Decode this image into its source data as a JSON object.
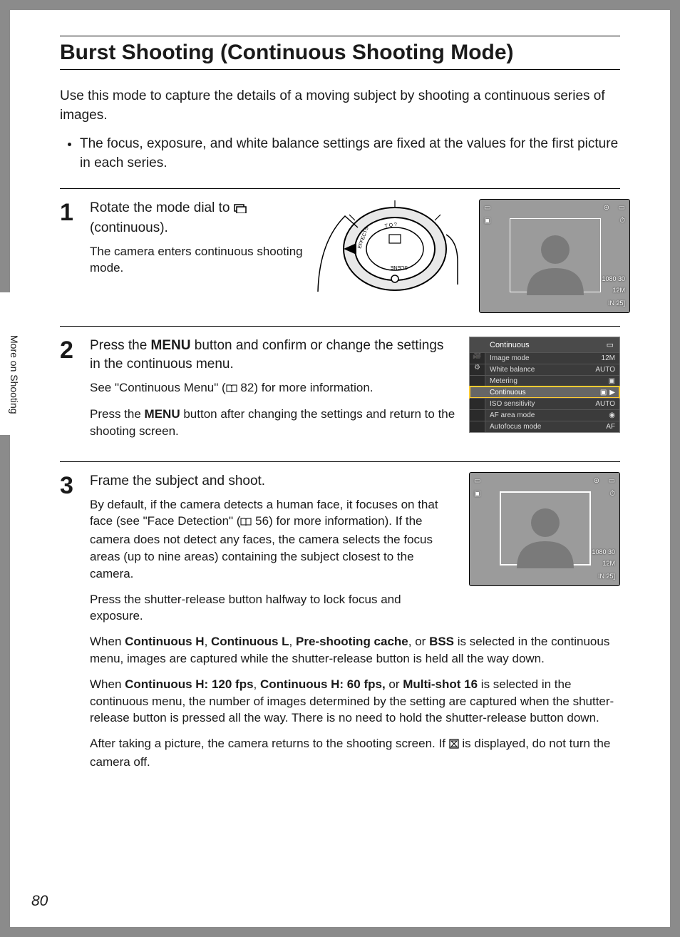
{
  "page": {
    "title": "Burst Shooting (Continuous Shooting Mode)",
    "intro": "Use this mode to capture the details of a moving subject by shooting a continuous series of images.",
    "bullet": "The focus, exposure, and white balance settings are fixed at the values for the first picture in each series.",
    "sidebar": "More on Shooting",
    "number": "80"
  },
  "step1": {
    "num": "1",
    "head_a": "Rotate the mode dial to ",
    "head_b": " (continuous).",
    "desc": "The camera enters continuous shooting mode."
  },
  "step2": {
    "num": "2",
    "head_a": "Press the ",
    "head_menu": "MENU",
    "head_b": " button and confirm or change the settings in the continuous menu.",
    "desc1_a": "See \"Continuous Menu\" (",
    "desc1_ref": "82",
    "desc1_b": ") for more information.",
    "desc2_a": "Press the ",
    "desc2_menu": "MENU",
    "desc2_b": " button after changing the settings and return to the shooting screen."
  },
  "step3": {
    "num": "3",
    "head": "Frame the subject and shoot.",
    "p1_a": "By default, if the camera detects a human face, it focuses on that face (see \"Face Detection\" (",
    "p1_ref": "56",
    "p1_b": ") for more information). If the camera does not detect any faces, the camera selects the focus areas (up to nine areas) containing the subject closest to the camera.",
    "p2": "Press the shutter-release button halfway to lock focus and exposure.",
    "p3_a": "When ",
    "p3_b1": "Continuous H",
    "p3_c": ", ",
    "p3_b2": "Continuous L",
    "p3_d": ", ",
    "p3_b3": "Pre-shooting cache",
    "p3_e": ", or ",
    "p3_b4": "BSS",
    "p3_f": " is selected in the continuous menu, images are captured while the shutter-release button is held all the way down.",
    "p4_a": "When ",
    "p4_b1": "Continuous H: 120 fps",
    "p4_c": ", ",
    "p4_b2": "Continuous H: 60 fps,",
    "p4_d": " or ",
    "p4_b3": "Multi-shot 16",
    "p4_e": " is selected in the continuous menu, the number of images determined by the setting are captured when the shutter-release button is pressed all the way. There is no need to hold the shutter-release button down.",
    "p5_a": "After taking a picture, the camera returns to the shooting screen. If ",
    "p5_b": " is displayed, do not turn the camera off."
  },
  "menu": {
    "title": "Continuous",
    "rows": [
      {
        "label": "Image mode",
        "val": "12M"
      },
      {
        "label": "White balance",
        "val": "AUTO"
      },
      {
        "label": "Metering",
        "val": "▣"
      },
      {
        "label": "Continuous",
        "val": "▣",
        "hl": true
      },
      {
        "label": "ISO sensitivity",
        "val": "AUTO"
      },
      {
        "label": "AF area mode",
        "val": "◉"
      },
      {
        "label": "Autofocus mode",
        "val": "AF"
      }
    ]
  },
  "lcd": {
    "top_icons_left": "▭",
    "top_icons_right1": "⊛",
    "top_icons_right2": "▭",
    "left_icon": "▣",
    "right_icon": "⏱",
    "br1": "1080 30",
    "br2": "12M",
    "br3": "IN  25]"
  },
  "colors": {
    "page_bg": "#8b8b8b",
    "lcd_bg": "#9b9b9b",
    "menu_bg": "#3b3b3b",
    "menu_hl": "#ffcc33"
  }
}
